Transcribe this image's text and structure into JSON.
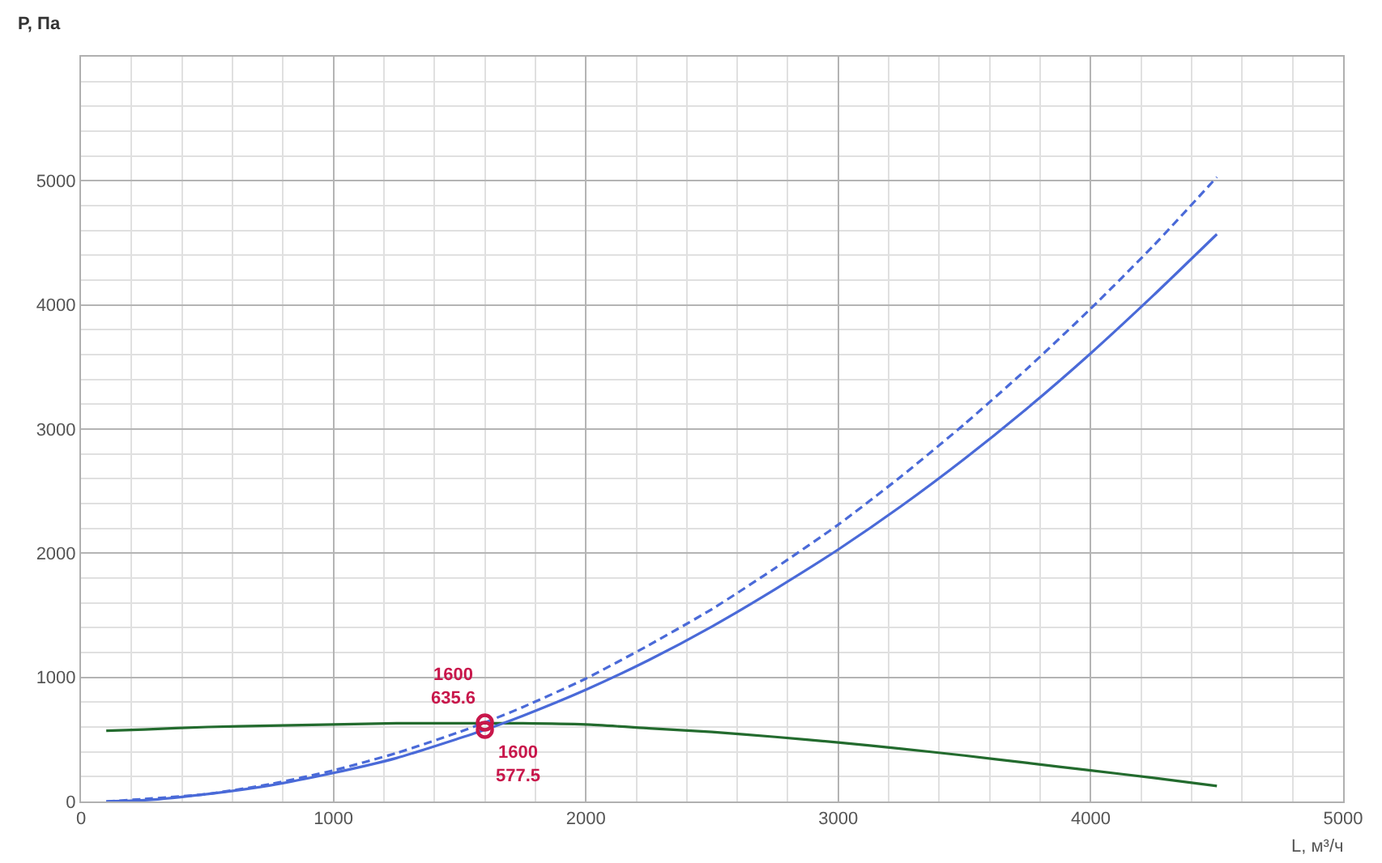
{
  "chart_data": {
    "type": "line",
    "xlabel": "L, м³/ч",
    "ylabel": "P, Па",
    "xlim": [
      0,
      5000
    ],
    "ylim": [
      0,
      6000
    ],
    "xticks": [
      0,
      {
        "value": 200,
        "label": null
      },
      {
        "value": 400,
        "label": null
      },
      {
        "value": 600,
        "label": null
      },
      {
        "value": 800,
        "label": null
      },
      1000,
      {
        "value": 1200,
        "label": null
      },
      {
        "value": 1400,
        "label": null
      },
      {
        "value": 1600,
        "label": null
      },
      {
        "value": 1800,
        "label": null
      },
      2000,
      {
        "value": 2200,
        "label": null
      },
      {
        "value": 2400,
        "label": null
      },
      {
        "value": 2600,
        "label": null
      },
      {
        "value": 2800,
        "label": null
      },
      3000,
      {
        "value": 3200,
        "label": null
      },
      {
        "value": 3400,
        "label": null
      },
      {
        "value": 3600,
        "label": null
      },
      {
        "value": 3800,
        "label": null
      },
      4000,
      {
        "value": 4200,
        "label": null
      },
      {
        "value": 4400,
        "label": null
      },
      {
        "value": 4600,
        "label": null
      },
      {
        "value": 4800,
        "label": null
      },
      5000
    ],
    "yticks": [
      0,
      {
        "value": 200,
        "label": null
      },
      {
        "value": 400,
        "label": null
      },
      {
        "value": 600,
        "label": null
      },
      {
        "value": 800,
        "label": null
      },
      1000,
      {
        "value": 1200,
        "label": null
      },
      {
        "value": 1400,
        "label": null
      },
      {
        "value": 1600,
        "label": null
      },
      {
        "value": 1800,
        "label": null
      },
      2000,
      {
        "value": 2200,
        "label": null
      },
      {
        "value": 2400,
        "label": null
      },
      {
        "value": 2600,
        "label": null
      },
      {
        "value": 2800,
        "label": null
      },
      3000,
      {
        "value": 3200,
        "label": null
      },
      {
        "value": 3400,
        "label": null
      },
      {
        "value": 3600,
        "label": null
      },
      {
        "value": 3800,
        "label": null
      },
      4000,
      {
        "value": 4200,
        "label": null
      },
      {
        "value": 4400,
        "label": null
      },
      {
        "value": 4600,
        "label": null
      },
      {
        "value": 4800,
        "label": null
      },
      5000,
      {
        "value": 5200,
        "label": null
      },
      {
        "value": 5400,
        "label": null
      },
      {
        "value": 5600,
        "label": null
      },
      {
        "value": 5800,
        "label": null
      },
      {
        "value": 6000,
        "label": null
      }
    ],
    "grid": true,
    "series": [
      {
        "color": "#236b2e",
        "line_style": "solid",
        "x": [
          100,
          250,
          500,
          750,
          1000,
          1250,
          1500,
          1600,
          1750,
          2000,
          2250,
          2500,
          2750,
          3000,
          3250,
          3500,
          3750,
          4000,
          4250,
          4500
        ],
        "values": [
          570,
          580,
          600,
          610,
          620,
          630,
          630,
          630,
          630,
          620,
          590,
          560,
          520,
          475,
          425,
          370,
          310,
          250,
          190,
          125
        ]
      },
      {
        "color": "#4a6ad8",
        "line_style": "solid",
        "x": [
          100,
          250,
          500,
          750,
          1000,
          1250,
          1500,
          1600,
          1750,
          2000,
          2250,
          2500,
          2750,
          3000,
          3250,
          3500,
          3750,
          4000,
          4250,
          4500
        ],
        "values": [
          0,
          10,
          60,
          130,
          230,
          350,
          510,
          577.5,
          690,
          900,
          1140,
          1410,
          1710,
          2030,
          2380,
          2760,
          3170,
          3610,
          4080,
          4570
        ]
      },
      {
        "color": "#4a6ad8",
        "line_style": "dashed",
        "x": [
          100,
          250,
          500,
          750,
          1000,
          1250,
          1500,
          1600,
          1750,
          2000,
          2250,
          2500,
          2750,
          3000,
          3250,
          3500,
          3750,
          4000,
          4250,
          4500
        ],
        "values": [
          0,
          20,
          60,
          140,
          250,
          390,
          560,
          635.6,
          760,
          990,
          1260,
          1550,
          1880,
          2230,
          2620,
          3040,
          3490,
          3970,
          4480,
          5030
        ]
      },
      {
        "type": "scatter",
        "color": "#c8174b",
        "marker": "circle",
        "x": [
          1600,
          1600
        ],
        "values": [
          635.6,
          577.5
        ]
      }
    ],
    "annotations": [
      {
        "text": "1600\n635.6",
        "x": 1600,
        "y": 635.6
      },
      {
        "text": "1600\n577.5",
        "x": 1600,
        "y": 577.5
      }
    ]
  }
}
